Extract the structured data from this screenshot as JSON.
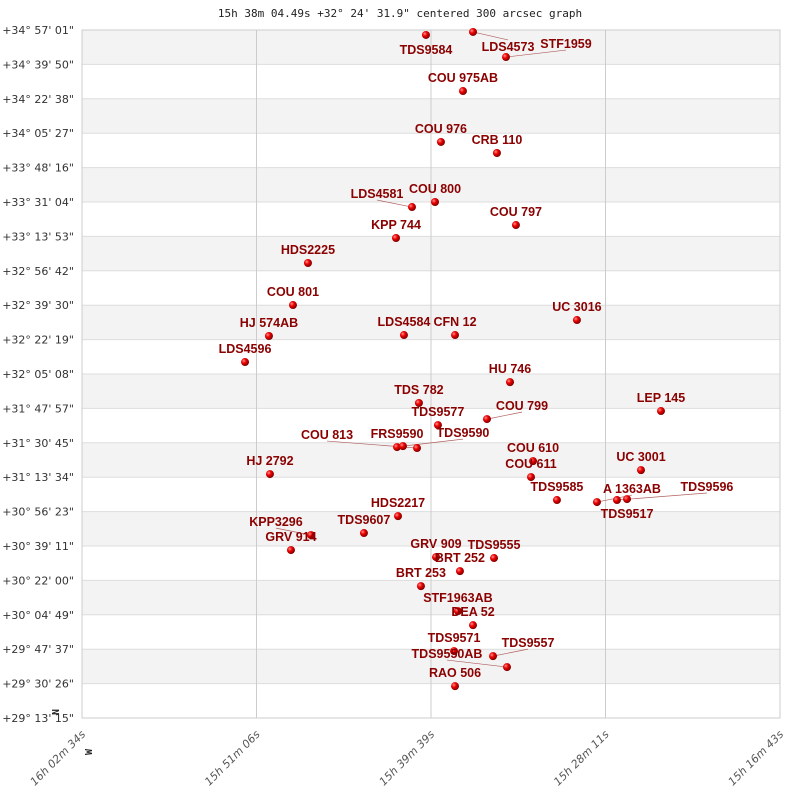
{
  "chart_data": {
    "type": "scatter",
    "title": "15h 38m 04.49s +32° 24' 31.9\" centered 300 arcsec graph",
    "x_unit": "RA (hours)",
    "y_unit": "Dec (degrees)",
    "xlim": [
      16.04278,
      15.27861
    ],
    "ylim": [
      29.22083,
      34.95028
    ],
    "x_reversed": true,
    "grid": true,
    "dot_color": "#dd0000",
    "label_color": "#8b0000",
    "stripe_color": "#f3f3f3",
    "compass": {
      "north": "N",
      "west": "W"
    },
    "x_ticks": [
      "16h 02m 34s",
      "15h 51m 06s",
      "15h 39m 39s",
      "15h 28m 11s",
      "15h 16m 43s"
    ],
    "y_ticks": [
      "+34° 57' 01\"",
      "+34° 39' 50\"",
      "+34° 22' 38\"",
      "+34° 05' 27\"",
      "+33° 48' 16\"",
      "+33° 31' 04\"",
      "+33° 13' 53\"",
      "+32° 56' 42\"",
      "+32° 39' 30\"",
      "+32° 22' 19\"",
      "+32° 05' 08\"",
      "+31° 47' 57\"",
      "+31° 30' 45\"",
      "+31° 13' 34\"",
      "+30° 56' 23\"",
      "+30° 39' 11\"",
      "+30° 22' 00\"",
      "+30° 04' 49\"",
      "+29° 47' 37\"",
      "+29° 30' 26\"",
      "+29° 13' 15\""
    ],
    "points": [
      {
        "name": "TDS9584",
        "ra": 15.6662,
        "dec": 34.909
      },
      {
        "name": "LDS4573",
        "ra": 15.6147,
        "dec": 34.934
      },
      {
        "name": "STF1959",
        "ra": 15.5786,
        "dec": 34.725
      },
      {
        "name": "COU 975AB",
        "ra": 15.6257,
        "dec": 34.442
      },
      {
        "name": "COU 976",
        "ra": 15.6498,
        "dec": 34.018
      },
      {
        "name": "CRB 110",
        "ra": 15.5885,
        "dec": 33.926
      },
      {
        "name": "COU 800",
        "ra": 15.6563,
        "dec": 33.518
      },
      {
        "name": "LDS4581",
        "ra": 15.6815,
        "dec": 33.476
      },
      {
        "name": "COU 797",
        "ra": 15.5677,
        "dec": 33.326
      },
      {
        "name": "KPP 744",
        "ra": 15.699,
        "dec": 33.218
      },
      {
        "name": "HDS2225",
        "ra": 15.7954,
        "dec": 33.01
      },
      {
        "name": "COU 801",
        "ra": 15.8118,
        "dec": 32.66
      },
      {
        "name": "UC 3016",
        "ra": 15.5009,
        "dec": 32.535
      },
      {
        "name": "HJ  574AB",
        "ra": 15.8381,
        "dec": 32.402
      },
      {
        "name": "LDS4584",
        "ra": 15.6903,
        "dec": 32.41
      },
      {
        "name": "CFN  12",
        "ra": 15.6344,
        "dec": 32.41
      },
      {
        "name": "LDS4596",
        "ra": 15.8643,
        "dec": 32.185
      },
      {
        "name": "HU  746",
        "ra": 15.5742,
        "dec": 32.018
      },
      {
        "name": "LEP 145",
        "ra": 15.4089,
        "dec": 31.777
      },
      {
        "name": "TDS 782",
        "ra": 15.6739,
        "dec": 31.844
      },
      {
        "name": "TDS9577",
        "ra": 15.6531,
        "dec": 31.66
      },
      {
        "name": "COU 799",
        "ra": 15.5994,
        "dec": 31.71
      },
      {
        "name": "FRS9590",
        "ra": 15.6979,
        "dec": 31.477
      },
      {
        "name": "TDS9590",
        "ra": 15.6914,
        "dec": 31.485
      },
      {
        "name": "COU 813",
        "ra": 15.676,
        "dec": 31.469
      },
      {
        "name": "COU 610",
        "ra": 15.549,
        "dec": 31.36
      },
      {
        "name": "COU 611",
        "ra": 15.5512,
        "dec": 31.227
      },
      {
        "name": "UC 3001",
        "ra": 15.4308,
        "dec": 31.285
      },
      {
        "name": "HJ 2792",
        "ra": 15.837,
        "dec": 31.252
      },
      {
        "name": "TDS9585",
        "ra": 15.5228,
        "dec": 31.036
      },
      {
        "name": "A 1363AB",
        "ra": 15.479,
        "dec": 31.019
      },
      {
        "name": "TDS9596",
        "ra": 15.4571,
        "dec": 31.036
      },
      {
        "name": "TDS9517",
        "ra": 15.4461,
        "dec": 31.044
      },
      {
        "name": "HDS2217",
        "ra": 15.6968,
        "dec": 30.902
      },
      {
        "name": "TDS9607",
        "ra": 15.7341,
        "dec": 30.761
      },
      {
        "name": "KPP3296",
        "ra": 15.7921,
        "dec": 30.744
      },
      {
        "name": "GRV 914",
        "ra": 15.814,
        "dec": 30.619
      },
      {
        "name": "GRV 909",
        "ra": 15.6552,
        "dec": 30.561
      },
      {
        "name": "TDS9555",
        "ra": 15.5917,
        "dec": 30.553
      },
      {
        "name": "BRT 252",
        "ra": 15.629,
        "dec": 30.444
      },
      {
        "name": "BRT 253",
        "ra": 15.6717,
        "dec": 30.319
      },
      {
        "name": "STF1963AB",
        "ra": 15.6312,
        "dec": 30.111
      },
      {
        "name": "DEA  52",
        "ra": 15.6147,
        "dec": 29.994
      },
      {
        "name": "TDS9571",
        "ra": 15.6355,
        "dec": 29.778
      },
      {
        "name": "TDS9557",
        "ra": 15.5928,
        "dec": 29.736
      },
      {
        "name": "TDS9550AB",
        "ra": 15.5775,
        "dec": 29.645
      },
      {
        "name": "RAO 506",
        "ra": 15.6344,
        "dec": 29.486
      }
    ]
  }
}
